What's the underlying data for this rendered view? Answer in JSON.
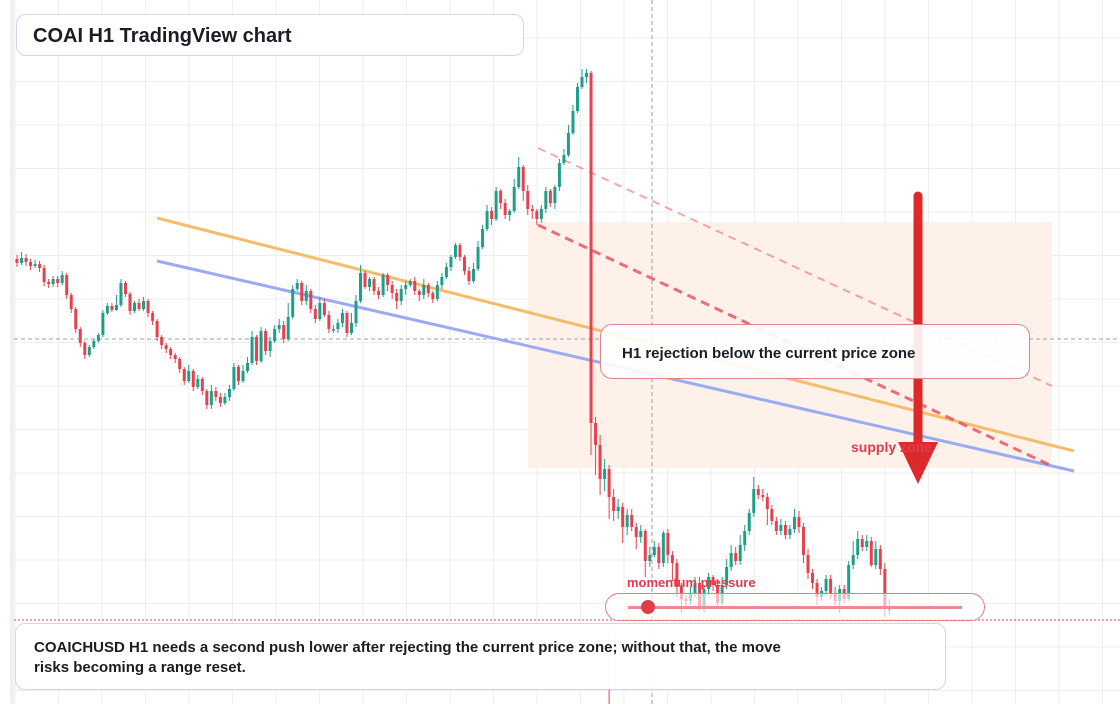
{
  "title": "COAI H1 TradingView chart",
  "callout": "H1 rejection below the current price zone",
  "supply_label": "supply zone",
  "momentum": {
    "label": "momentum pressure",
    "value": 0.06
  },
  "note": "COAICHUSD H1 needs a second push lower after rejecting the current price zone; without that, the move risks becoming a range reset.",
  "colors": {
    "bull": "#1f9e89",
    "bear": "#e8414e",
    "trend_orange": "#f5bd6b",
    "trend_blue": "#9aabf3",
    "resistance_red": "#e8414e",
    "zone_fill": "#fdf1ea",
    "grid": "#eceef2"
  },
  "chart_data": {
    "type": "candlestick",
    "series": [
      {
        "name": "",
        "values": [
          [
            0.8,
            0.76,
            0.84,
            0.72
          ],
          [
            0.76,
            0.81,
            0.87,
            0.74
          ],
          [
            0.81,
            0.77,
            0.85,
            0.73
          ],
          [
            0.77,
            0.73,
            0.8,
            0.69
          ],
          [
            0.73,
            0.75,
            0.79,
            0.71
          ],
          [
            0.75,
            0.71,
            0.78,
            0.67
          ],
          [
            0.71,
            0.57,
            0.74,
            0.53
          ],
          [
            0.57,
            0.55,
            0.6,
            0.51
          ],
          [
            0.55,
            0.6,
            0.63,
            0.52
          ],
          [
            0.6,
            0.56,
            0.63,
            0.52
          ],
          [
            0.56,
            0.64,
            0.68,
            0.54
          ],
          [
            0.64,
            0.44,
            0.66,
            0.4
          ],
          [
            0.44,
            0.3,
            0.46,
            0.26
          ],
          [
            0.3,
            0.1,
            0.32,
            0.06
          ],
          [
            0.1,
            -0.04,
            0.12,
            -0.08
          ],
          [
            -0.04,
            -0.16,
            -0.02,
            -0.2
          ],
          [
            -0.16,
            -0.08,
            -0.06,
            -0.18
          ],
          [
            -0.08,
            -0.02,
            0.0,
            -0.1
          ],
          [
            -0.02,
            0.04,
            0.06,
            -0.04
          ],
          [
            0.04,
            0.26,
            0.29,
            0.02
          ],
          [
            0.26,
            0.33,
            0.36,
            0.24
          ],
          [
            0.33,
            0.29,
            0.36,
            0.27
          ],
          [
            0.29,
            0.34,
            0.44,
            0.28
          ],
          [
            0.34,
            0.56,
            0.6,
            0.32
          ],
          [
            0.56,
            0.45,
            0.58,
            0.42
          ],
          [
            0.45,
            0.28,
            0.47,
            0.24
          ],
          [
            0.28,
            0.36,
            0.38,
            0.26
          ],
          [
            0.36,
            0.3,
            0.4,
            0.28
          ],
          [
            0.3,
            0.38,
            0.42,
            0.28
          ],
          [
            0.38,
            0.26,
            0.4,
            0.22
          ],
          [
            0.26,
            0.18,
            0.28,
            0.14
          ],
          [
            0.18,
            0.02,
            0.2,
            -0.02
          ],
          [
            0.02,
            -0.06,
            0.04,
            -0.1
          ],
          [
            -0.06,
            -0.1,
            -0.04,
            -0.14
          ],
          [
            -0.1,
            -0.16,
            -0.08,
            -0.2
          ],
          [
            -0.16,
            -0.2,
            -0.14,
            -0.24
          ],
          [
            -0.2,
            -0.3,
            -0.18,
            -0.34
          ],
          [
            -0.3,
            -0.42,
            -0.28,
            -0.46
          ],
          [
            -0.42,
            -0.32,
            -0.26,
            -0.44
          ],
          [
            -0.32,
            -0.48,
            -0.3,
            -0.52
          ],
          [
            -0.48,
            -0.4,
            -0.36,
            -0.5
          ],
          [
            -0.4,
            -0.52,
            -0.38,
            -0.56
          ],
          [
            -0.52,
            -0.66,
            -0.5,
            -0.7
          ],
          [
            -0.66,
            -0.52,
            -0.46,
            -0.7
          ],
          [
            -0.52,
            -0.58,
            -0.48,
            -0.62
          ],
          [
            -0.58,
            -0.64,
            -0.54,
            -0.68
          ],
          [
            -0.64,
            -0.58,
            -0.54,
            -0.66
          ],
          [
            -0.58,
            -0.5,
            -0.46,
            -0.62
          ],
          [
            -0.5,
            -0.28,
            -0.24,
            -0.52
          ],
          [
            -0.28,
            -0.42,
            -0.26,
            -0.46
          ],
          [
            -0.42,
            -0.32,
            -0.26,
            -0.44
          ],
          [
            -0.32,
            -0.24,
            -0.18,
            -0.34
          ],
          [
            -0.24,
            0.02,
            0.08,
            -0.26
          ],
          [
            0.02,
            -0.22,
            0.04,
            -0.26
          ],
          [
            -0.22,
            0.08,
            0.12,
            -0.24
          ],
          [
            0.08,
            -0.12,
            0.1,
            -0.16
          ],
          [
            -0.12,
            -0.02,
            0.02,
            -0.18
          ],
          [
            -0.02,
            0.1,
            0.14,
            -0.04
          ],
          [
            0.1,
            0.14,
            0.2,
            0.06
          ],
          [
            0.14,
            0.0,
            0.18,
            -0.04
          ],
          [
            0.0,
            0.22,
            0.36,
            -0.02
          ],
          [
            0.22,
            0.5,
            0.54,
            0.2
          ],
          [
            0.5,
            0.56,
            0.6,
            0.48
          ],
          [
            0.56,
            0.38,
            0.58,
            0.34
          ],
          [
            0.38,
            0.48,
            0.54,
            0.34
          ],
          [
            0.48,
            0.3,
            0.5,
            0.26
          ],
          [
            0.3,
            0.2,
            0.34,
            0.16
          ],
          [
            0.2,
            0.36,
            0.42,
            0.18
          ],
          [
            0.36,
            0.24,
            0.4,
            0.22
          ],
          [
            0.24,
            0.1,
            0.28,
            0.06
          ],
          [
            0.1,
            0.1,
            0.14,
            0.06
          ],
          [
            0.1,
            0.16,
            0.2,
            0.06
          ],
          [
            0.16,
            0.26,
            0.3,
            0.12
          ],
          [
            0.26,
            0.06,
            0.28,
            0.02
          ],
          [
            0.06,
            0.16,
            0.26,
            0.04
          ],
          [
            0.16,
            0.38,
            0.44,
            0.12
          ],
          [
            0.38,
            0.66,
            0.74,
            0.36
          ],
          [
            0.66,
            0.52,
            0.68,
            0.5
          ],
          [
            0.52,
            0.6,
            0.62,
            0.48
          ],
          [
            0.6,
            0.48,
            0.62,
            0.44
          ],
          [
            0.48,
            0.44,
            0.52,
            0.4
          ],
          [
            0.44,
            0.64,
            0.66,
            0.42
          ],
          [
            0.64,
            0.54,
            0.66,
            0.48
          ],
          [
            0.54,
            0.46,
            0.58,
            0.4
          ],
          [
            0.46,
            0.38,
            0.5,
            0.3
          ],
          [
            0.38,
            0.5,
            0.54,
            0.34
          ],
          [
            0.5,
            0.54,
            0.58,
            0.44
          ],
          [
            0.54,
            0.58,
            0.6,
            0.52
          ],
          [
            0.58,
            0.48,
            0.62,
            0.44
          ],
          [
            0.48,
            0.44,
            0.5,
            0.38
          ],
          [
            0.44,
            0.54,
            0.6,
            0.4
          ],
          [
            0.54,
            0.46,
            0.56,
            0.42
          ],
          [
            0.46,
            0.4,
            0.48,
            0.36
          ],
          [
            0.4,
            0.54,
            0.58,
            0.38
          ],
          [
            0.54,
            0.62,
            0.66,
            0.5
          ],
          [
            0.62,
            0.72,
            0.76,
            0.6
          ],
          [
            0.72,
            0.82,
            0.84,
            0.68
          ],
          [
            0.82,
            0.94,
            0.96,
            0.8
          ],
          [
            0.94,
            0.82,
            0.96,
            0.78
          ],
          [
            0.82,
            0.68,
            0.84,
            0.64
          ],
          [
            0.68,
            0.58,
            0.72,
            0.54
          ],
          [
            0.58,
            0.7,
            0.76,
            0.56
          ],
          [
            0.7,
            0.92,
            0.98,
            0.68
          ],
          [
            0.92,
            1.1,
            1.14,
            0.9
          ],
          [
            1.1,
            1.28,
            1.34,
            1.08
          ],
          [
            1.28,
            1.2,
            1.32,
            1.14
          ],
          [
            1.2,
            1.48,
            1.52,
            1.18
          ],
          [
            1.48,
            1.36,
            1.5,
            1.3
          ],
          [
            1.36,
            1.24,
            1.4,
            1.2
          ],
          [
            1.24,
            1.28,
            1.3,
            1.18
          ],
          [
            1.28,
            1.52,
            1.6,
            1.26
          ],
          [
            1.52,
            1.72,
            1.82,
            1.5
          ],
          [
            1.72,
            1.48,
            1.74,
            1.38
          ],
          [
            1.48,
            1.3,
            1.54,
            1.24
          ],
          [
            1.3,
            1.28,
            1.34,
            1.2
          ],
          [
            1.28,
            1.2,
            1.3,
            1.14
          ],
          [
            1.2,
            1.3,
            1.34,
            1.16
          ],
          [
            1.3,
            1.48,
            1.52,
            1.26
          ],
          [
            1.48,
            1.36,
            1.5,
            1.32
          ],
          [
            1.36,
            1.52,
            1.54,
            1.3
          ],
          [
            1.52,
            1.76,
            1.8,
            1.48
          ],
          [
            1.76,
            1.84,
            1.9,
            1.74
          ],
          [
            1.84,
            2.06,
            2.14,
            1.82
          ],
          [
            2.06,
            2.28,
            2.34,
            2.04
          ],
          [
            2.28,
            2.52,
            2.56,
            2.26
          ],
          [
            2.52,
            2.62,
            2.7,
            2.5
          ],
          [
            2.62,
            2.66,
            2.7,
            2.56
          ],
          [
            2.66,
            -0.84,
            2.68,
            -1.16
          ],
          [
            -0.84,
            -1.06,
            -0.78,
            -1.36
          ],
          [
            -1.06,
            -1.4,
            -0.96,
            -1.56
          ],
          [
            -1.4,
            -1.3,
            -1.2,
            -1.52
          ],
          [
            -1.3,
            -1.58,
            -1.26,
            -1.8
          ],
          [
            -1.58,
            -1.72,
            -1.5,
            -1.82
          ],
          [
            -1.72,
            -1.68,
            -1.6,
            -1.8
          ],
          [
            -1.68,
            -1.88,
            -1.64,
            -2.04
          ],
          [
            -1.88,
            -1.76,
            -1.7,
            -1.96
          ],
          [
            -1.76,
            -1.88,
            -1.7,
            -1.92
          ],
          [
            -1.88,
            -1.98,
            -1.84,
            -2.1
          ],
          [
            -1.98,
            -1.92,
            -1.86,
            -2.04
          ],
          [
            -1.92,
            -2.22,
            -1.9,
            -2.38
          ],
          [
            -2.22,
            -2.16,
            -2.08,
            -2.28
          ],
          [
            -2.16,
            -2.08,
            -2.02,
            -2.18
          ],
          [
            -2.08,
            -2.24,
            -2.04,
            -2.3
          ],
          [
            -2.24,
            -1.94,
            -1.92,
            -2.28
          ],
          [
            -1.94,
            -2.16,
            -1.9,
            -2.24
          ],
          [
            -2.16,
            -2.24,
            -2.12,
            -2.42
          ],
          [
            -2.24,
            -2.48,
            -2.2,
            -2.58
          ],
          [
            -2.48,
            -2.6,
            -2.44,
            -2.74
          ],
          [
            -2.6,
            -2.62,
            -2.56,
            -2.68
          ],
          [
            -2.62,
            -2.54,
            -2.48,
            -2.66
          ],
          [
            -2.54,
            -2.44,
            -2.38,
            -2.58
          ],
          [
            -2.44,
            -2.68,
            -2.38,
            -2.72
          ],
          [
            -2.68,
            -2.5,
            -2.46,
            -2.74
          ],
          [
            -2.5,
            -2.38,
            -2.34,
            -2.56
          ],
          [
            -2.38,
            -2.46,
            -2.36,
            -2.52
          ],
          [
            -2.46,
            -2.64,
            -2.4,
            -2.68
          ],
          [
            -2.64,
            -2.46,
            -2.38,
            -2.68
          ],
          [
            -2.46,
            -2.28,
            -2.2,
            -2.5
          ],
          [
            -2.28,
            -2.14,
            -2.06,
            -2.32
          ],
          [
            -2.14,
            -2.22,
            -2.08,
            -2.26
          ],
          [
            -2.22,
            -2.06,
            -1.96,
            -2.26
          ],
          [
            -2.06,
            -1.92,
            -1.86,
            -2.12
          ],
          [
            -1.92,
            -1.74,
            -1.7,
            -1.96
          ],
          [
            -1.74,
            -1.5,
            -1.38,
            -1.78
          ],
          [
            -1.5,
            -1.56,
            -1.46,
            -1.6
          ],
          [
            -1.56,
            -1.58,
            -1.5,
            -1.62
          ],
          [
            -1.58,
            -1.7,
            -1.54,
            -1.86
          ],
          [
            -1.7,
            -1.82,
            -1.66,
            -1.86
          ],
          [
            -1.82,
            -1.92,
            -1.78,
            -1.96
          ],
          [
            -1.92,
            -1.86,
            -1.8,
            -1.96
          ],
          [
            -1.86,
            -1.96,
            -1.82,
            -2.0
          ],
          [
            -1.96,
            -1.9,
            -1.86,
            -2.0
          ],
          [
            -1.9,
            -1.78,
            -1.7,
            -1.94
          ],
          [
            -1.78,
            -1.88,
            -1.72,
            -1.94
          ],
          [
            -1.88,
            -2.16,
            -1.84,
            -2.24
          ],
          [
            -2.16,
            -2.34,
            -2.1,
            -2.4
          ],
          [
            -2.34,
            -2.44,
            -2.3,
            -2.5
          ],
          [
            -2.44,
            -2.58,
            -2.4,
            -2.66
          ],
          [
            -2.58,
            -2.52,
            -2.48,
            -2.62
          ],
          [
            -2.52,
            -2.4,
            -2.36,
            -2.56
          ],
          [
            -2.4,
            -2.54,
            -2.36,
            -2.6
          ],
          [
            -2.54,
            -2.62,
            -2.48,
            -2.66
          ],
          [
            -2.62,
            -2.5,
            -2.46,
            -2.74
          ],
          [
            -2.5,
            -2.6,
            -2.46,
            -2.64
          ],
          [
            -2.6,
            -2.26,
            -2.22,
            -2.62
          ],
          [
            -2.26,
            -2.16,
            -2.02,
            -2.3
          ],
          [
            -2.16,
            -2.0,
            -1.92,
            -2.2
          ],
          [
            -2.0,
            -2.08,
            -1.96,
            -2.12
          ],
          [
            -2.08,
            -2.02,
            -1.96,
            -2.12
          ],
          [
            -2.02,
            -2.26,
            -1.98,
            -2.28
          ],
          [
            -2.26,
            -2.1,
            -2.02,
            -2.3
          ],
          [
            -2.1,
            -2.3,
            -2.06,
            -2.36
          ],
          [
            -2.3,
            -2.7,
            -2.24,
            -2.78
          ],
          [
            -2.7,
            -2.7,
            -2.6,
            -2.76
          ]
        ]
      }
    ]
  }
}
